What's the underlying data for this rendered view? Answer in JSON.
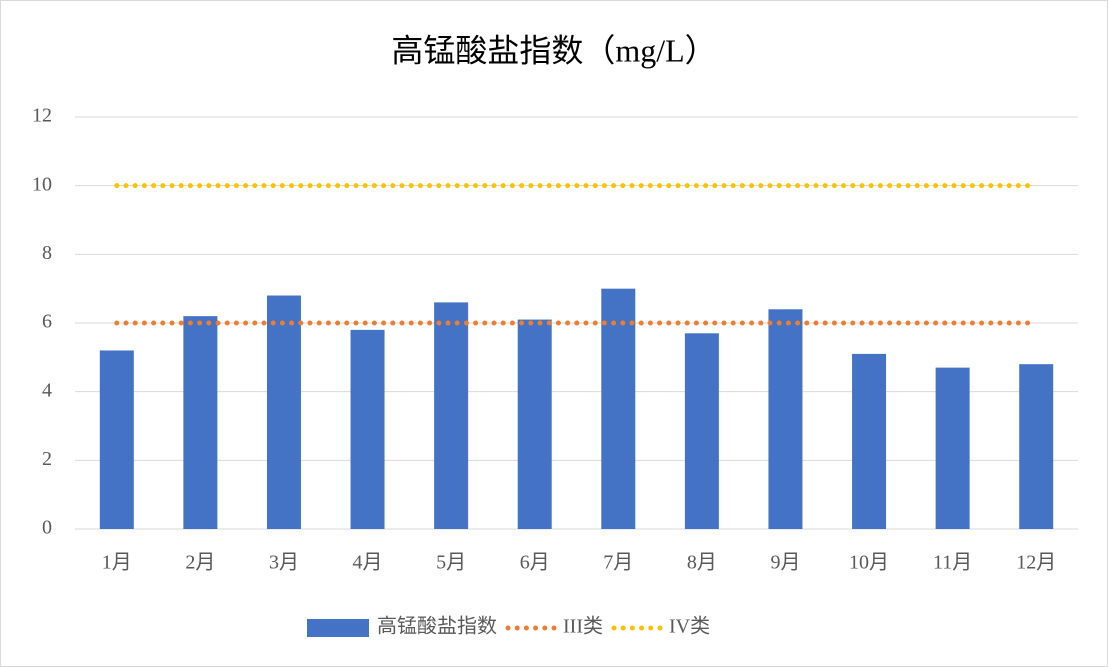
{
  "chart_data": {
    "type": "bar",
    "title": "高锰酸盐指数（mg/L）",
    "categories": [
      "1月",
      "2月",
      "3月",
      "4月",
      "5月",
      "6月",
      "7月",
      "8月",
      "9月",
      "10月",
      "11月",
      "12月"
    ],
    "series": [
      {
        "name": "高锰酸盐指数",
        "type": "bar",
        "color": "#4472c4",
        "values": [
          5.2,
          6.2,
          6.8,
          5.8,
          6.6,
          6.1,
          7.0,
          5.7,
          6.4,
          5.1,
          4.7,
          4.8
        ]
      },
      {
        "name": "III类",
        "type": "line",
        "color": "#ed7d31",
        "values": [
          6,
          6,
          6,
          6,
          6,
          6,
          6,
          6,
          6,
          6,
          6,
          6
        ]
      },
      {
        "name": "IV类",
        "type": "line",
        "color": "#ffc000",
        "values": [
          10,
          10,
          10,
          10,
          10,
          10,
          10,
          10,
          10,
          10,
          10,
          10
        ]
      }
    ],
    "ylim": [
      0,
      12
    ],
    "yticks": [
      0,
      2,
      4,
      6,
      8,
      10,
      12
    ],
    "grid": true,
    "legend": "bottom"
  }
}
